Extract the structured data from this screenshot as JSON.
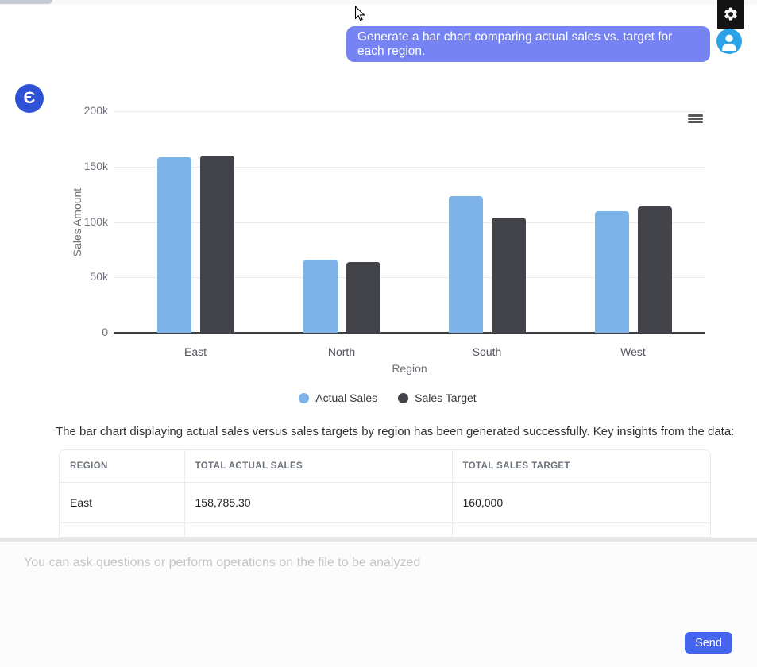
{
  "chat": {
    "user_message": "Generate a bar chart comparing actual sales vs. target for each region.",
    "assistant_logo_glyph": "Є",
    "summary_text": "The bar chart displaying actual sales versus sales targets by region has been generated successfully. Key insights from the data:"
  },
  "chart_data": {
    "type": "bar",
    "title": "",
    "categories": [
      "East",
      "North",
      "South",
      "West"
    ],
    "series": [
      {
        "name": "Actual Sales",
        "color": "#7db3e8",
        "values": [
          158785.3,
          66000,
          123000,
          110000
        ]
      },
      {
        "name": "Sales Target",
        "color": "#434449",
        "values": [
          160000,
          64000,
          104000,
          114000
        ]
      }
    ],
    "xlabel": "Region",
    "ylabel": "Sales Amount",
    "ylim": [
      0,
      200000
    ],
    "yticks": [
      "0",
      "50k",
      "100k",
      "150k",
      "200k"
    ],
    "grid": true,
    "legend_position": "bottom"
  },
  "table": {
    "headers": [
      "REGION",
      "TOTAL ACTUAL SALES",
      "TOTAL SALES TARGET"
    ],
    "rows": [
      [
        "East",
        "158,785.30",
        "160,000"
      ]
    ]
  },
  "composer": {
    "placeholder": "You can ask questions or perform operations on the file to be analyzed",
    "send_label": "Send"
  },
  "colors": {
    "user_bubble": "#7584f2",
    "user_avatar": "#2ba3e8",
    "assistant_logo": "#2e52d5",
    "actual_sales_bar": "#7db3e8",
    "sales_target_bar": "#434449",
    "send_button": "#4565ef"
  }
}
